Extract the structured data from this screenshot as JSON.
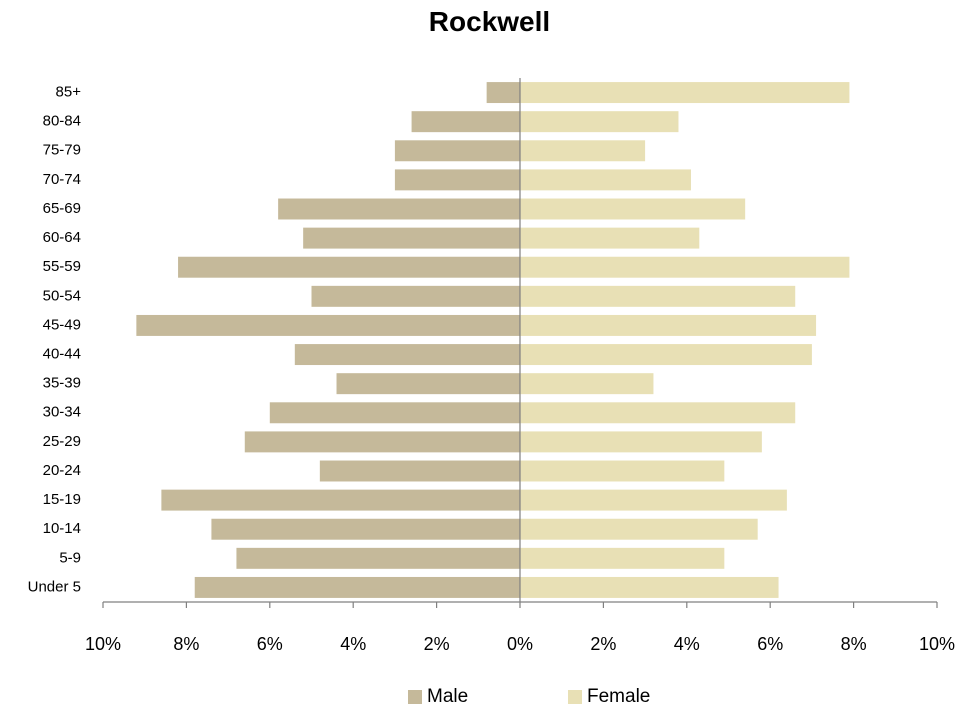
{
  "chart_data": {
    "type": "bar",
    "orientation": "horizontal",
    "title": "Rockwell",
    "categories": [
      "Under 5",
      "5-9",
      "10-14",
      "15-19",
      "20-24",
      "25-29",
      "30-34",
      "35-39",
      "40-44",
      "45-49",
      "50-54",
      "55-59",
      "60-64",
      "65-69",
      "70-74",
      "75-79",
      "80-84",
      "85+"
    ],
    "series": [
      {
        "name": "Male",
        "color": "#c5b99a",
        "values": [
          7.8,
          6.8,
          7.4,
          8.6,
          4.8,
          6.6,
          6.0,
          4.4,
          5.4,
          9.2,
          5.0,
          8.2,
          5.2,
          5.8,
          3.0,
          3.0,
          2.6,
          0.8
        ]
      },
      {
        "name": "Female",
        "color": "#e8e0b5",
        "values": [
          6.2,
          4.9,
          5.7,
          6.4,
          4.9,
          5.8,
          6.6,
          3.2,
          7.0,
          7.1,
          6.6,
          7.9,
          4.3,
          5.4,
          4.1,
          3.0,
          3.8,
          7.9
        ]
      }
    ],
    "xlim": [
      -10,
      10
    ],
    "xticks": [
      "10%",
      "8%",
      "6%",
      "4%",
      "2%",
      "0%",
      "2%",
      "4%",
      "6%",
      "8%",
      "10%"
    ],
    "grid": false,
    "legend_position": "bottom"
  }
}
